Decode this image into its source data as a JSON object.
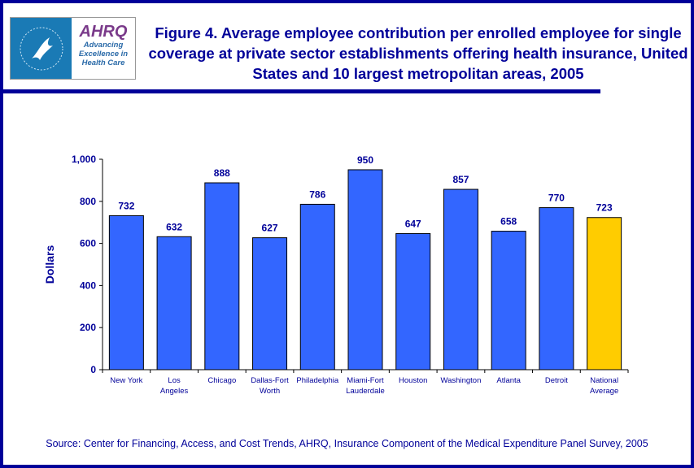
{
  "logo": {
    "hhs_text": "DEPARTMENT OF HEALTH & HUMAN SERVICES USA",
    "wordmark": "AHRQ",
    "tagline": [
      "Advancing",
      "Excellence in",
      "Health Care"
    ]
  },
  "title": "Figure 4. Average employee contribution per enrolled employee for single coverage at private sector establishments offering health insurance, United States and 10 largest metropolitan areas, 2005",
  "source": "Source: Center for Financing, Access, and Cost Trends, AHRQ, Insurance Component of the Medical Expenditure Panel Survey, 2005",
  "colors": {
    "bar": "#3366ff",
    "highlight": "#ffcc00",
    "text": "#000099"
  },
  "chart_data": {
    "type": "bar",
    "title": "Figure 4. Average employee contribution per enrolled employee for single coverage at private sector establishments offering health insurance, United States and 10 largest metropolitan areas, 2005",
    "xlabel": "",
    "ylabel": "Dollars",
    "ylim": [
      0,
      1000
    ],
    "yticks": [
      "0",
      "200",
      "400",
      "600",
      "800",
      "1,000"
    ],
    "categories": [
      [
        "New York"
      ],
      [
        "Los",
        "Angeles"
      ],
      [
        "Chicago"
      ],
      [
        "Dallas-Fort",
        "Worth"
      ],
      [
        "Philadelphia"
      ],
      [
        "Miami-Fort",
        "Lauderdale"
      ],
      [
        "Houston"
      ],
      [
        "Washington"
      ],
      [
        "Atlanta"
      ],
      [
        "Detroit"
      ],
      [
        "National",
        "Average"
      ]
    ],
    "values": [
      732,
      632,
      888,
      627,
      786,
      950,
      647,
      857,
      658,
      770,
      723
    ],
    "highlight_index": 10,
    "grid": false
  }
}
